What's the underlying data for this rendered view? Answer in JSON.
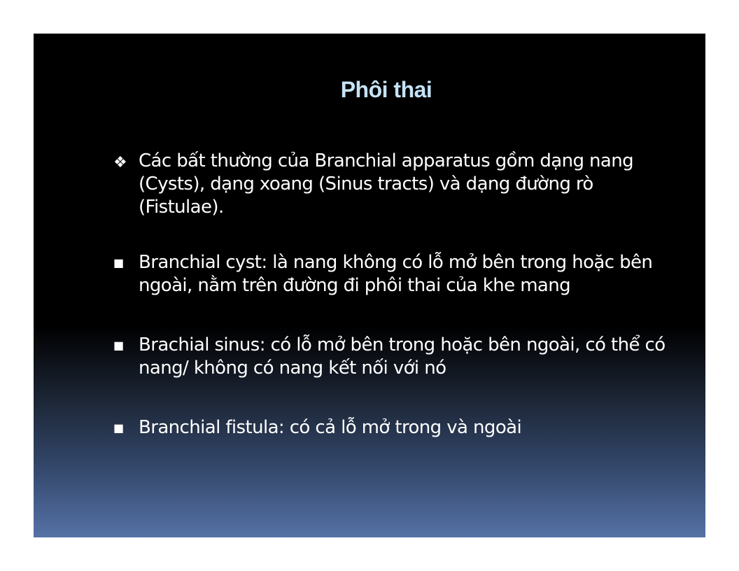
{
  "slide": {
    "title": "Phôi thai",
    "bullets": [
      {
        "marker": "❖",
        "marker_icon": "four-diamond-icon",
        "text": "Các bất thường của Branchial apparatus gồm dạng nang (Cysts), dạng xoang (Sinus tracts) và dạng đường rò (Fistulae)."
      },
      {
        "marker": "■",
        "marker_icon": "square-bullet-icon",
        "text": "Branchial cyst: là nang không có lỗ mở bên trong hoặc bên ngoài, nằm trên đường đi phôi thai của khe mang"
      },
      {
        "marker": "■",
        "marker_icon": "square-bullet-icon",
        "text": "Brachial sinus: có lỗ mở bên trong hoặc bên ngoài, có thể có nang/ không có nang kết nối với nó"
      },
      {
        "marker": "■",
        "marker_icon": "square-bullet-icon",
        "text": "Branchial fistula: có cả lỗ mở trong và ngoài"
      }
    ],
    "colors": {
      "title": "#c5e2f7",
      "text": "#ffffff",
      "background_top": "#000000",
      "background_bottom": "#5572a6"
    }
  }
}
